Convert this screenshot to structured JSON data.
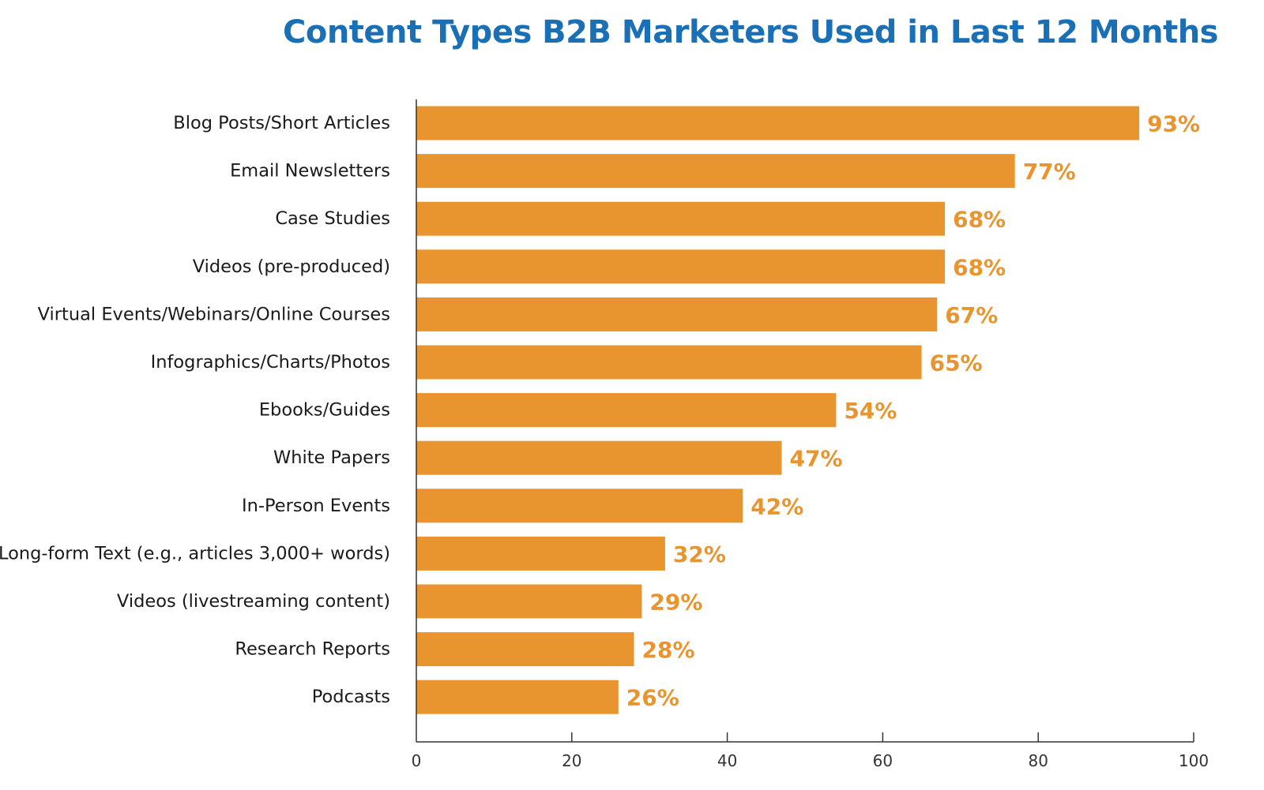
{
  "chart_data": {
    "type": "bar",
    "orientation": "horizontal",
    "title": "Content Types B2B Marketers Used in Last 12 Months",
    "categories": [
      "Blog Posts/Short Articles",
      "Email Newsletters",
      "Case Studies",
      "Videos (pre-produced)",
      "Virtual Events/Webinars/Online Courses",
      "Infographics/Charts/Photos",
      "Ebooks/Guides",
      "White Papers",
      "In-Person Events",
      "Long-form Text (e.g., articles 3,000+ words)",
      "Videos (livestreaming content)",
      "Research Reports",
      "Podcasts"
    ],
    "values": [
      93,
      77,
      68,
      68,
      67,
      65,
      54,
      47,
      42,
      32,
      29,
      28,
      26
    ],
    "value_labels": [
      "93%",
      "77%",
      "68%",
      "68%",
      "67%",
      "65%",
      "54%",
      "47%",
      "42%",
      "32%",
      "29%",
      "28%",
      "26%"
    ],
    "xlim": [
      0,
      100
    ],
    "xticks": [
      0,
      20,
      40,
      60,
      80,
      100
    ],
    "xtick_labels": [
      "0",
      "20",
      "40",
      "60",
      "80",
      "100"
    ],
    "xlabel": "",
    "ylabel": "",
    "grid": false,
    "legend": "none",
    "colors": {
      "bar": "#e8952f",
      "value_label": "#e8952f",
      "title": "#1a6fb5",
      "axis": "#333333"
    }
  }
}
